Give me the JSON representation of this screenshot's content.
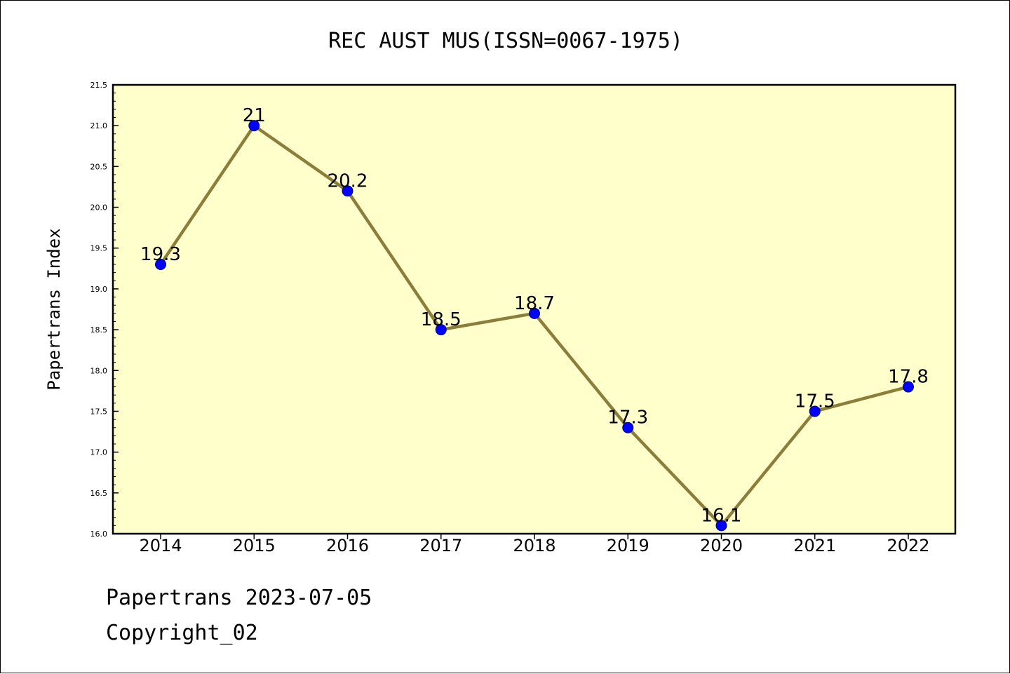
{
  "chart_data": {
    "type": "line",
    "title": "REC AUST MUS(ISSN=0067-1975)",
    "xlabel": "",
    "ylabel": "Papertrans Index",
    "categories": [
      "2014",
      "2015",
      "2016",
      "2017",
      "2018",
      "2019",
      "2020",
      "2021",
      "2022"
    ],
    "series": [
      {
        "values": [
          19.3,
          21,
          20.2,
          18.5,
          18.7,
          17.3,
          16.1,
          17.5,
          17.8
        ],
        "data_labels": [
          "19.3",
          "21",
          "20.2",
          "18.5",
          "18.7",
          "17.3",
          "16.1",
          "17.5",
          "17.8"
        ]
      }
    ],
    "ylim": [
      16.0,
      21.5
    ],
    "yticks": [
      "16.0",
      "16.5",
      "17.0",
      "17.5",
      "18.0",
      "18.5",
      "19.0",
      "19.5",
      "20.0",
      "20.5",
      "21.0",
      "21.5"
    ],
    "grid": false,
    "colors": {
      "plot_background": "#ffffcc",
      "line": "#8b7d3a",
      "marker": "#0000ff"
    }
  },
  "footer": {
    "line1": "Papertrans 2023-07-05",
    "line2": "Copyright_02"
  }
}
